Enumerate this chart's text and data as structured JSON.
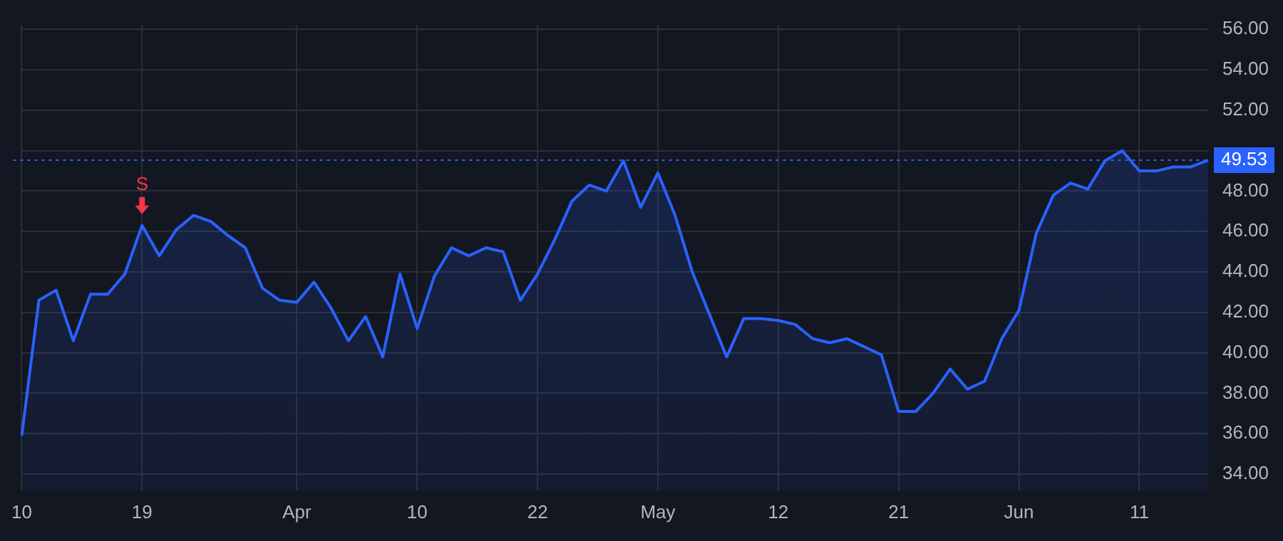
{
  "chart_data": {
    "type": "area",
    "categories": [
      "10",
      null,
      null,
      null,
      null,
      null,
      null,
      "19",
      null,
      null,
      null,
      null,
      null,
      null,
      null,
      null,
      "Apr",
      null,
      null,
      null,
      null,
      null,
      null,
      "10",
      null,
      null,
      null,
      null,
      null,
      null,
      "22",
      null,
      null,
      null,
      null,
      null,
      null,
      "May",
      null,
      null,
      null,
      null,
      null,
      null,
      "12",
      null,
      null,
      null,
      null,
      null,
      null,
      "21",
      null,
      null,
      null,
      null,
      null,
      null,
      "Jun",
      null,
      null,
      null,
      null,
      null,
      null,
      "11",
      null,
      null,
      null,
      null
    ],
    "series": [
      {
        "color": "#2962ff",
        "values": [
          35.9,
          42.6,
          43.1,
          40.6,
          42.9,
          42.9,
          43.9,
          46.3,
          44.8,
          46.1,
          46.8,
          46.5,
          45.8,
          45.2,
          43.2,
          42.6,
          42.5,
          43.5,
          42.2,
          40.6,
          41.8,
          39.8,
          43.9,
          41.2,
          43.8,
          45.2,
          44.8,
          45.2,
          45.0,
          42.6,
          43.9,
          45.6,
          47.5,
          48.3,
          48.0,
          49.5,
          47.2,
          48.9,
          46.8,
          44.0,
          41.9,
          39.8,
          41.7,
          41.7,
          41.6,
          41.4,
          40.7,
          40.5,
          40.7,
          40.3,
          39.9,
          37.1,
          37.1,
          38.0,
          39.2,
          38.2,
          38.6,
          40.7,
          42.1,
          45.9,
          47.8,
          48.4,
          48.1,
          49.5,
          50.0,
          49.0,
          49.0,
          49.2,
          49.2,
          49.53
        ]
      }
    ],
    "ylim": [
      33.2,
      56.2
    ],
    "yticks": [
      {
        "value": 34,
        "label": "34.00"
      },
      {
        "value": 36,
        "label": "36.00"
      },
      {
        "value": 38,
        "label": "38.00"
      },
      {
        "value": 40,
        "label": "40.00"
      },
      {
        "value": 42,
        "label": "42.00"
      },
      {
        "value": 44,
        "label": "44.00"
      },
      {
        "value": 46,
        "label": "46.00"
      },
      {
        "value": 48,
        "label": "48.00"
      },
      {
        "value": 50,
        "label": null
      },
      {
        "value": 52,
        "label": "52.00"
      },
      {
        "value": 54,
        "label": "54.00"
      },
      {
        "value": 56,
        "label": "56.00"
      }
    ],
    "grid": true,
    "ref_lines": [
      {
        "axis": "y",
        "value": 49.53,
        "label": "49.53",
        "color": "#2962ff",
        "line_style": "dotted"
      }
    ],
    "annotations": [
      {
        "text": "S",
        "x": "19",
        "y": 46.3
      }
    ]
  }
}
